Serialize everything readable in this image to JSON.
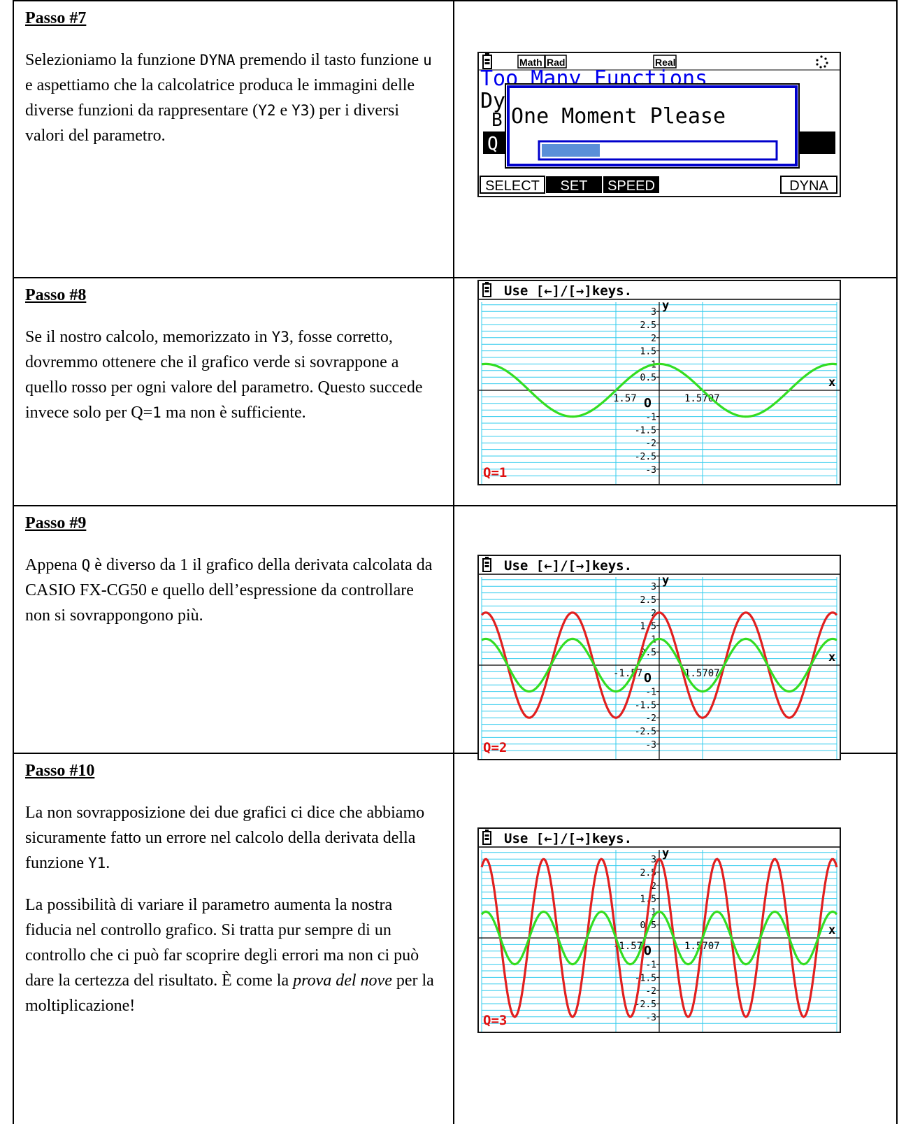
{
  "steps": [
    {
      "title": "Passo #7",
      "paragraphs": [
        [
          {
            "t": "Selezioniamo la funzione "
          },
          {
            "t": "DYNA",
            "code": true
          },
          {
            "t": " premendo il tasto funzione "
          },
          {
            "t": "u",
            "code": true
          },
          {
            "t": " e aspettiamo che la calcolatrice produca le immagini delle diverse funzioni da rappresentare ("
          },
          {
            "t": "Y2",
            "code": true
          },
          {
            "t": " e "
          },
          {
            "t": "Y3",
            "code": true
          },
          {
            "t": ") per i diversi valori del parametro."
          }
        ]
      ]
    },
    {
      "title": "Passo #8",
      "paragraphs": [
        [
          {
            "t": "Se il nostro calcolo, memorizzato in "
          },
          {
            "t": "Y3",
            "code": true
          },
          {
            "t": ", fosse corretto, dovremmo ottenere che il grafico verde si sovrappone a quello rosso per ogni valore del parametro. Questo succede invece solo per Q="
          },
          {
            "t": "1",
            "code": true
          },
          {
            "t": " ma non è sufficiente."
          }
        ]
      ]
    },
    {
      "title": "Passo #9",
      "paragraphs": [
        [
          {
            "t": "Appena "
          },
          {
            "t": "Q",
            "code": true
          },
          {
            "t": " è diverso da 1 il grafico della derivata calcolata da CASIO FX-CG50 e quello dell’espressione da controllare non si sovrappongono più."
          }
        ]
      ]
    },
    {
      "title": "Passo #10",
      "paragraphs": [
        [
          {
            "t": "La non sovrapposizione dei due grafici ci dice che abbiamo sicuramente fatto un errore nel calcolo della derivata della funzione "
          },
          {
            "t": "Y1",
            "code": true
          },
          {
            "t": "."
          }
        ],
        [
          {
            "t": "La possibilità di variare il parametro aumenta la nostra fiducia nel controllo grafico. Si tratta pur sempre di un controllo che ci può far scoprire degli errori ma non ci può dare la certezza del risultato. È come la "
          },
          {
            "t": "prova del nove",
            "italic": true
          },
          {
            "t": " per la moltiplicazione!"
          }
        ]
      ]
    }
  ],
  "dyna_screen": {
    "status_badges": [
      "Math",
      "Rad",
      "Real"
    ],
    "background_title": "Too Many Functions",
    "background_line2": "Dy",
    "background_line3": "B",
    "background_line4": "Q",
    "dialog_message": "One Moment Please",
    "progress": 0.25,
    "softkeys": [
      "SELECT",
      "SET",
      "SPEED",
      "DYNA"
    ],
    "colors": {
      "title_blue": "#0000ee",
      "dialog_border": "#0000cc",
      "progress_fill": "#5a8fd8"
    }
  },
  "graphs": [
    {
      "header": "Use [←]/[→]keys.",
      "q_label": "Q=1",
      "q": 1,
      "show_red": false,
      "x_tick_labels": [
        "1.57",
        "1.5707"
      ],
      "x_label": "x",
      "y_label": "y",
      "origin_label": "O",
      "y_tick_labels": [
        "3",
        "2.5",
        "2",
        "1.5",
        "1",
        "0.5",
        "-1",
        "-1.5",
        "-2",
        "-2.5",
        "-3"
      ]
    },
    {
      "header": "Use [←]/[→]keys.",
      "q_label": "Q=2",
      "q": 2,
      "show_red": true,
      "x_tick_labels": [
        "-1.57",
        "1.5707"
      ],
      "x_label": "x",
      "y_label": "y",
      "origin_label": "O",
      "y_tick_labels": [
        "3",
        "2.5",
        "2",
        "1.5",
        "1",
        "0.5",
        "-1",
        "-1.5",
        "-2",
        "-2.5",
        "-3"
      ]
    },
    {
      "header": "Use [←]/[→]keys.",
      "q_label": "Q=3",
      "q": 3,
      "show_red": true,
      "x_tick_labels": [
        "-1.57",
        "1.5707"
      ],
      "x_label": "x",
      "y_label": "y",
      "origin_label": "O",
      "y_tick_labels": [
        "3",
        "2.5",
        "2",
        "1.5",
        "1",
        "0.5",
        "-1",
        "-1.5",
        "-2",
        "-2.5",
        "-3"
      ]
    }
  ],
  "graph_colors": {
    "grid": "#33ccee",
    "red_curve": "#e02020",
    "green_curve": "#33dd22",
    "q_label": "#e01010"
  }
}
